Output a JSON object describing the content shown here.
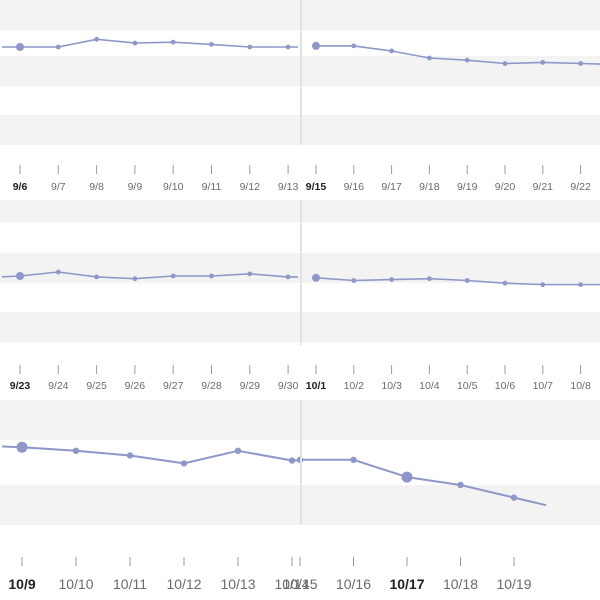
{
  "colors": {
    "line": "#8e97c8",
    "band": "#f3f3f3",
    "divider": "#e2e2e2",
    "label": "#6b6b6b",
    "label_bold": "#222222",
    "tick": "#9a9a9a"
  },
  "week_navigator": {
    "rows": [
      {
        "size": "small",
        "panels": [
          {
            "dates": [
              "9/6",
              "9/7",
              "9/8",
              "9/9",
              "9/10",
              "9/11",
              "9/12",
              "9/13"
            ],
            "bold_index": 0,
            "marker_index": 0,
            "level": [
              0.5,
              0.5,
              0.85,
              0.68,
              0.72,
              0.62,
              0.5,
              0.5
            ]
          },
          {
            "dates": [
              "9/15",
              "9/16",
              "9/17",
              "9/18",
              "9/19",
              "9/20",
              "9/21",
              "9/22"
            ],
            "bold_index": 0,
            "marker_index": 0,
            "level": [
              0.55,
              0.55,
              0.32,
              0.0,
              -0.1,
              -0.25,
              -0.2,
              -0.25
            ]
          }
        ]
      },
      {
        "size": "small",
        "panels": [
          {
            "dates": [
              "9/23",
              "9/24",
              "9/25",
              "9/26",
              "9/27",
              "9/28",
              "9/29",
              "9/30"
            ],
            "bold_index": 0,
            "marker_index": 0,
            "level": [
              0.5,
              0.72,
              0.45,
              0.35,
              0.5,
              0.5,
              0.62,
              0.45
            ]
          },
          {
            "dates": [
              "10/1",
              "10/2",
              "10/3",
              "10/4",
              "10/5",
              "10/6",
              "10/7",
              "10/8"
            ],
            "bold_index": 0,
            "marker_index": 0,
            "level": [
              0.4,
              0.25,
              0.3,
              0.35,
              0.25,
              0.1,
              0.02,
              0.02
            ]
          }
        ]
      },
      {
        "size": "large",
        "panels": [
          {
            "dates": [
              "10/9",
              "10/10",
              "10/11",
              "10/12",
              "10/13",
              "10/14"
            ],
            "bold_index": 0,
            "marker_index": 0,
            "level": [
              0.55,
              0.45,
              0.32,
              0.1,
              0.45,
              0.18
            ]
          },
          {
            "dates": [
              "10/15",
              "10/16",
              "10/17",
              "10/18",
              "10/19"
            ],
            "bold_index": 2,
            "marker_index": 2,
            "level": [
              0.2,
              0.2,
              -0.28,
              -0.5,
              -0.85
            ]
          }
        ]
      }
    ]
  }
}
